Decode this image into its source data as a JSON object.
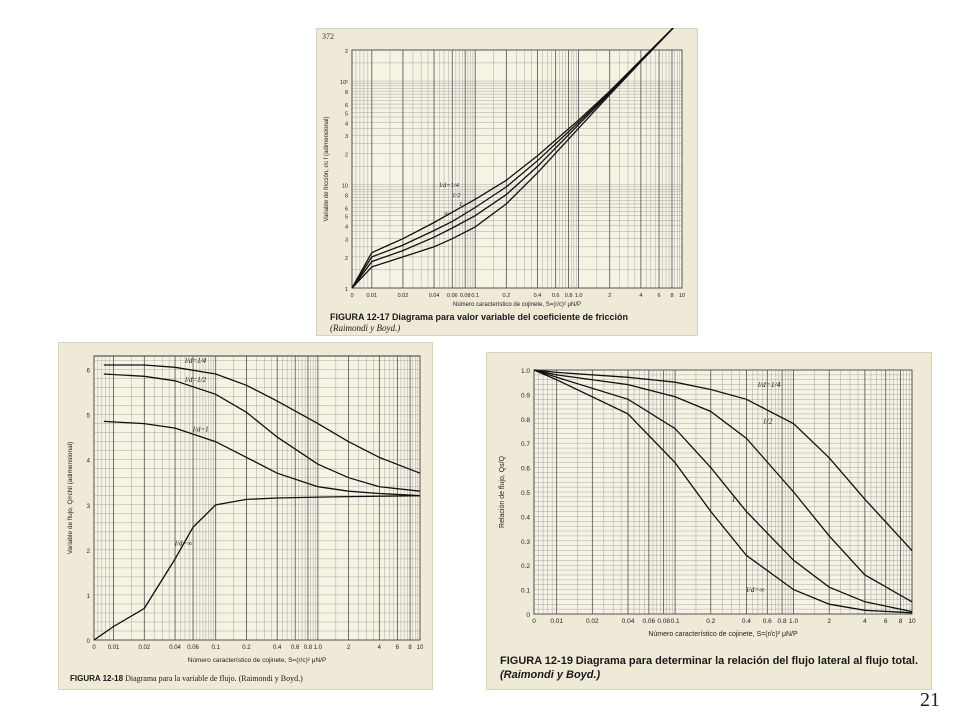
{
  "page_number": "21",
  "figures": [
    {
      "id": "fig1217",
      "header": "372",
      "caption_label": "FIGURA 12-17",
      "caption_text": "Diagrama para valor variable del coeficiente de fricción",
      "caption_cite": "(Raimondi y Boyd.)",
      "xlabel": "Número característico de cojinete, S=(r/c)² μN/P",
      "ylabel": "Variable de fricción, r/c f (adimensional)"
    },
    {
      "id": "fig1218",
      "caption_label": "FIGURA 12-18",
      "caption_text": "Diagrama para la variable de flujo. (Raimondi y Boyd.)",
      "xlabel": "Número característico de cojinete, S=(r/c)² μN/P",
      "ylabel": "Variable de flujo, Q/rcNl (adimensional)"
    },
    {
      "id": "fig1219",
      "caption_label": "FIGURA 12-19",
      "caption_text": "Diagrama para determinar la relación del flujo lateral al flujo total.",
      "caption_cite": "(Raimondi y Boyd.)",
      "xlabel": "Número característico de cojinete, S=(r/c)² μN/P",
      "ylabel": "Relación de flujo, Qs/Q"
    }
  ],
  "chart_data": [
    {
      "type": "line",
      "title": "",
      "xlabel": "Número característico de cojinete, S=(r/c)² μN/P",
      "ylabel": "Variable de fricción, r/c f (adimensional)",
      "x_ticks": [
        "0",
        "0.01",
        "0.02",
        "0.04",
        "0.06",
        "0.08",
        "0.1",
        "0.2",
        "0.4",
        "0.6",
        "0.8",
        "1.0",
        "2",
        "4",
        "6",
        "8",
        "10"
      ],
      "y_ticks": [
        "1",
        "2",
        "3",
        "4",
        "5",
        "6",
        "8",
        "10",
        "2",
        "3",
        "4",
        "5",
        "6",
        "8",
        "10²",
        "2"
      ],
      "series": [
        {
          "name": "l/d=1/4",
          "x": [
            0,
            0.01,
            0.02,
            0.04,
            0.06,
            0.1,
            0.2,
            0.4,
            1,
            2,
            4,
            10
          ],
          "y": [
            1,
            2.2,
            3,
            4.3,
            5.4,
            7.2,
            11,
            19,
            42,
            80,
            160,
            400
          ]
        },
        {
          "name": "1/2",
          "x": [
            0,
            0.01,
            0.02,
            0.04,
            0.06,
            0.1,
            0.2,
            0.4,
            1,
            2,
            4,
            10
          ],
          "y": [
            1,
            2,
            2.6,
            3.6,
            4.4,
            6,
            9.5,
            17,
            40,
            78,
            158,
            400
          ]
        },
        {
          "name": "1",
          "x": [
            0,
            0.01,
            0.02,
            0.04,
            0.06,
            0.1,
            0.2,
            0.4,
            1,
            2,
            4,
            10
          ],
          "y": [
            1,
            1.8,
            2.3,
            3.1,
            3.8,
            5,
            8,
            15,
            38,
            76,
            156,
            400
          ]
        },
        {
          "name": "∞",
          "x": [
            0,
            0.01,
            0.02,
            0.04,
            0.06,
            0.1,
            0.2,
            0.4,
            1,
            2,
            4,
            10
          ],
          "y": [
            1,
            1.6,
            2,
            2.5,
            3,
            3.9,
            6.5,
            13,
            35,
            74,
            154,
            400
          ]
        }
      ]
    },
    {
      "type": "line",
      "title": "",
      "xlabel": "Número característico de cojinete, S=(r/c)² μN/P",
      "ylabel": "Variable de flujo, Q/rcNl (adimensional)",
      "x_ticks": [
        "0",
        "0.01",
        "0.02",
        "0.04",
        "0.06",
        "0.1",
        "0.2",
        "0.4",
        "0.6",
        "0.8",
        "1.0",
        "2",
        "4",
        "6",
        "8",
        "10"
      ],
      "y_ticks": [
        "0",
        "1",
        "2",
        "3",
        "4",
        "5",
        "6"
      ],
      "ylim": [
        0,
        6.3
      ],
      "series": [
        {
          "name": "l/d=1/4",
          "x": [
            0.005,
            0.02,
            0.04,
            0.1,
            0.2,
            0.4,
            1,
            2,
            4,
            10
          ],
          "y": [
            6.1,
            6.1,
            6.05,
            5.9,
            5.65,
            5.3,
            4.8,
            4.4,
            4.05,
            3.7
          ]
        },
        {
          "name": "l/d=1/2",
          "x": [
            0.005,
            0.02,
            0.04,
            0.1,
            0.2,
            0.4,
            1,
            2,
            4,
            10
          ],
          "y": [
            5.9,
            5.85,
            5.75,
            5.45,
            5.05,
            4.5,
            3.9,
            3.6,
            3.4,
            3.3
          ]
        },
        {
          "name": "l/d=1",
          "x": [
            0.005,
            0.02,
            0.04,
            0.1,
            0.2,
            0.4,
            1,
            2,
            4,
            10
          ],
          "y": [
            4.85,
            4.8,
            4.7,
            4.4,
            4.05,
            3.7,
            3.4,
            3.3,
            3.25,
            3.2
          ]
        },
        {
          "name": "l/d=∞",
          "x": [
            0,
            0.01,
            0.02,
            0.04,
            0.06,
            0.1,
            0.2,
            0.4,
            1,
            2,
            4,
            10
          ],
          "y": [
            0,
            0.3,
            0.7,
            1.8,
            2.5,
            3.0,
            3.12,
            3.15,
            3.17,
            3.18,
            3.19,
            3.2
          ]
        }
      ]
    },
    {
      "type": "line",
      "title": "",
      "xlabel": "Número característico de cojinete, S=(r/c)² μN/P",
      "ylabel": "Relación de flujo, Qs/Q",
      "x_ticks": [
        "0",
        "0.01",
        "0.02",
        "0.04",
        "0.06",
        "0.08",
        "0.1",
        "0.2",
        "0.4",
        "0.6",
        "0.8",
        "1.0",
        "2",
        "4",
        "6",
        "8",
        "10"
      ],
      "y_ticks": [
        "0",
        "0.1",
        "0.2",
        "0.3",
        "0.4",
        "0.5",
        "0.6",
        "0.7",
        "0.8",
        "0.9",
        "1.0"
      ],
      "ylim": [
        0,
        1.0
      ],
      "series": [
        {
          "name": "l/d=1/4",
          "x": [
            0,
            0.01,
            0.04,
            0.1,
            0.2,
            0.4,
            1,
            2,
            4,
            10
          ],
          "y": [
            1.0,
            0.99,
            0.97,
            0.95,
            0.92,
            0.88,
            0.78,
            0.64,
            0.47,
            0.26
          ]
        },
        {
          "name": "1/2",
          "x": [
            0,
            0.01,
            0.04,
            0.1,
            0.2,
            0.4,
            1,
            2,
            4,
            10
          ],
          "y": [
            1.0,
            0.98,
            0.94,
            0.89,
            0.83,
            0.72,
            0.5,
            0.32,
            0.16,
            0.05
          ]
        },
        {
          "name": "1",
          "x": [
            0,
            0.01,
            0.04,
            0.1,
            0.2,
            0.4,
            1,
            2,
            4,
            10
          ],
          "y": [
            1.0,
            0.97,
            0.88,
            0.76,
            0.6,
            0.42,
            0.22,
            0.11,
            0.05,
            0.01
          ]
        },
        {
          "name": "l/d=∞",
          "x": [
            0,
            0.01,
            0.04,
            0.1,
            0.2,
            0.4,
            1,
            2,
            4,
            10
          ],
          "y": [
            1.0,
            0.96,
            0.82,
            0.62,
            0.42,
            0.24,
            0.1,
            0.04,
            0.015,
            0.005
          ]
        }
      ]
    }
  ]
}
